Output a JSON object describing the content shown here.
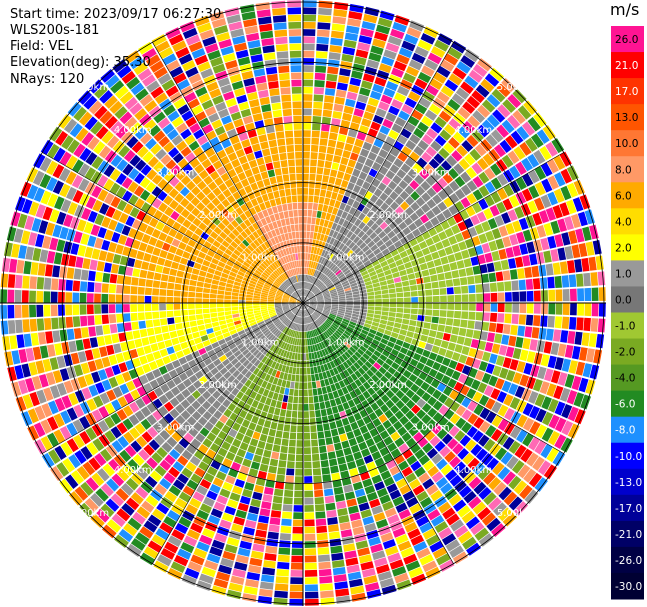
{
  "info": {
    "start_time": "Start time: 2023/09/17 06:27:30",
    "instrument": "WLS200s-181",
    "field": "Field: VEL",
    "elevation": "Elevation(deg): 35.30",
    "nrays": "NRays: 120"
  },
  "chart_data": {
    "type": "heatmap",
    "subtype": "polar-ppi",
    "range_rings_km": [
      1,
      2,
      3,
      4,
      5
    ],
    "ring_labels": [
      "1.00km",
      "2.00km",
      "3.00km",
      "4.00km",
      "5.00km"
    ],
    "max_range_km": 5.4,
    "n_rays": 120,
    "field": "VEL",
    "colorbar": {
      "unit": "m/s",
      "ticks": [
        "26.0",
        "21.0",
        "17.0",
        "13.0",
        "10.0",
        "8.0",
        "6.0",
        "4.0",
        "2.0",
        "1.0",
        "0.0",
        "-1.0",
        "-2.0",
        "-4.0",
        "-6.0",
        "-8.0",
        "-10.0",
        "-13.0",
        "-17.0",
        "-21.0",
        "-26.0",
        "-30.0"
      ],
      "colors": [
        "#ff1493",
        "#ff0000",
        "#ff3300",
        "#ff5500",
        "#ff7733",
        "#ff9966",
        "#ffaa00",
        "#ffdd00",
        "#ffff00",
        "#999999",
        "#777777",
        "#a0c832",
        "#7aaa22",
        "#559922",
        "#228b22",
        "#1e90ff",
        "#0000ff",
        "#0000cc",
        "#000099",
        "#000066",
        "#000044",
        "#000033"
      ],
      "range": [
        -30,
        30
      ]
    },
    "velocity_pattern": {
      "description_values_ms": {
        "north_near": 8.0,
        "west_near": 6.0,
        "east_near": -2.0,
        "south_near": -6.0,
        "south_west_near": 0.0,
        "far_noise": "random"
      }
    }
  },
  "colors": {
    "crosshair": "#000000",
    "ring": "#000000",
    "background": "#ffffff"
  }
}
